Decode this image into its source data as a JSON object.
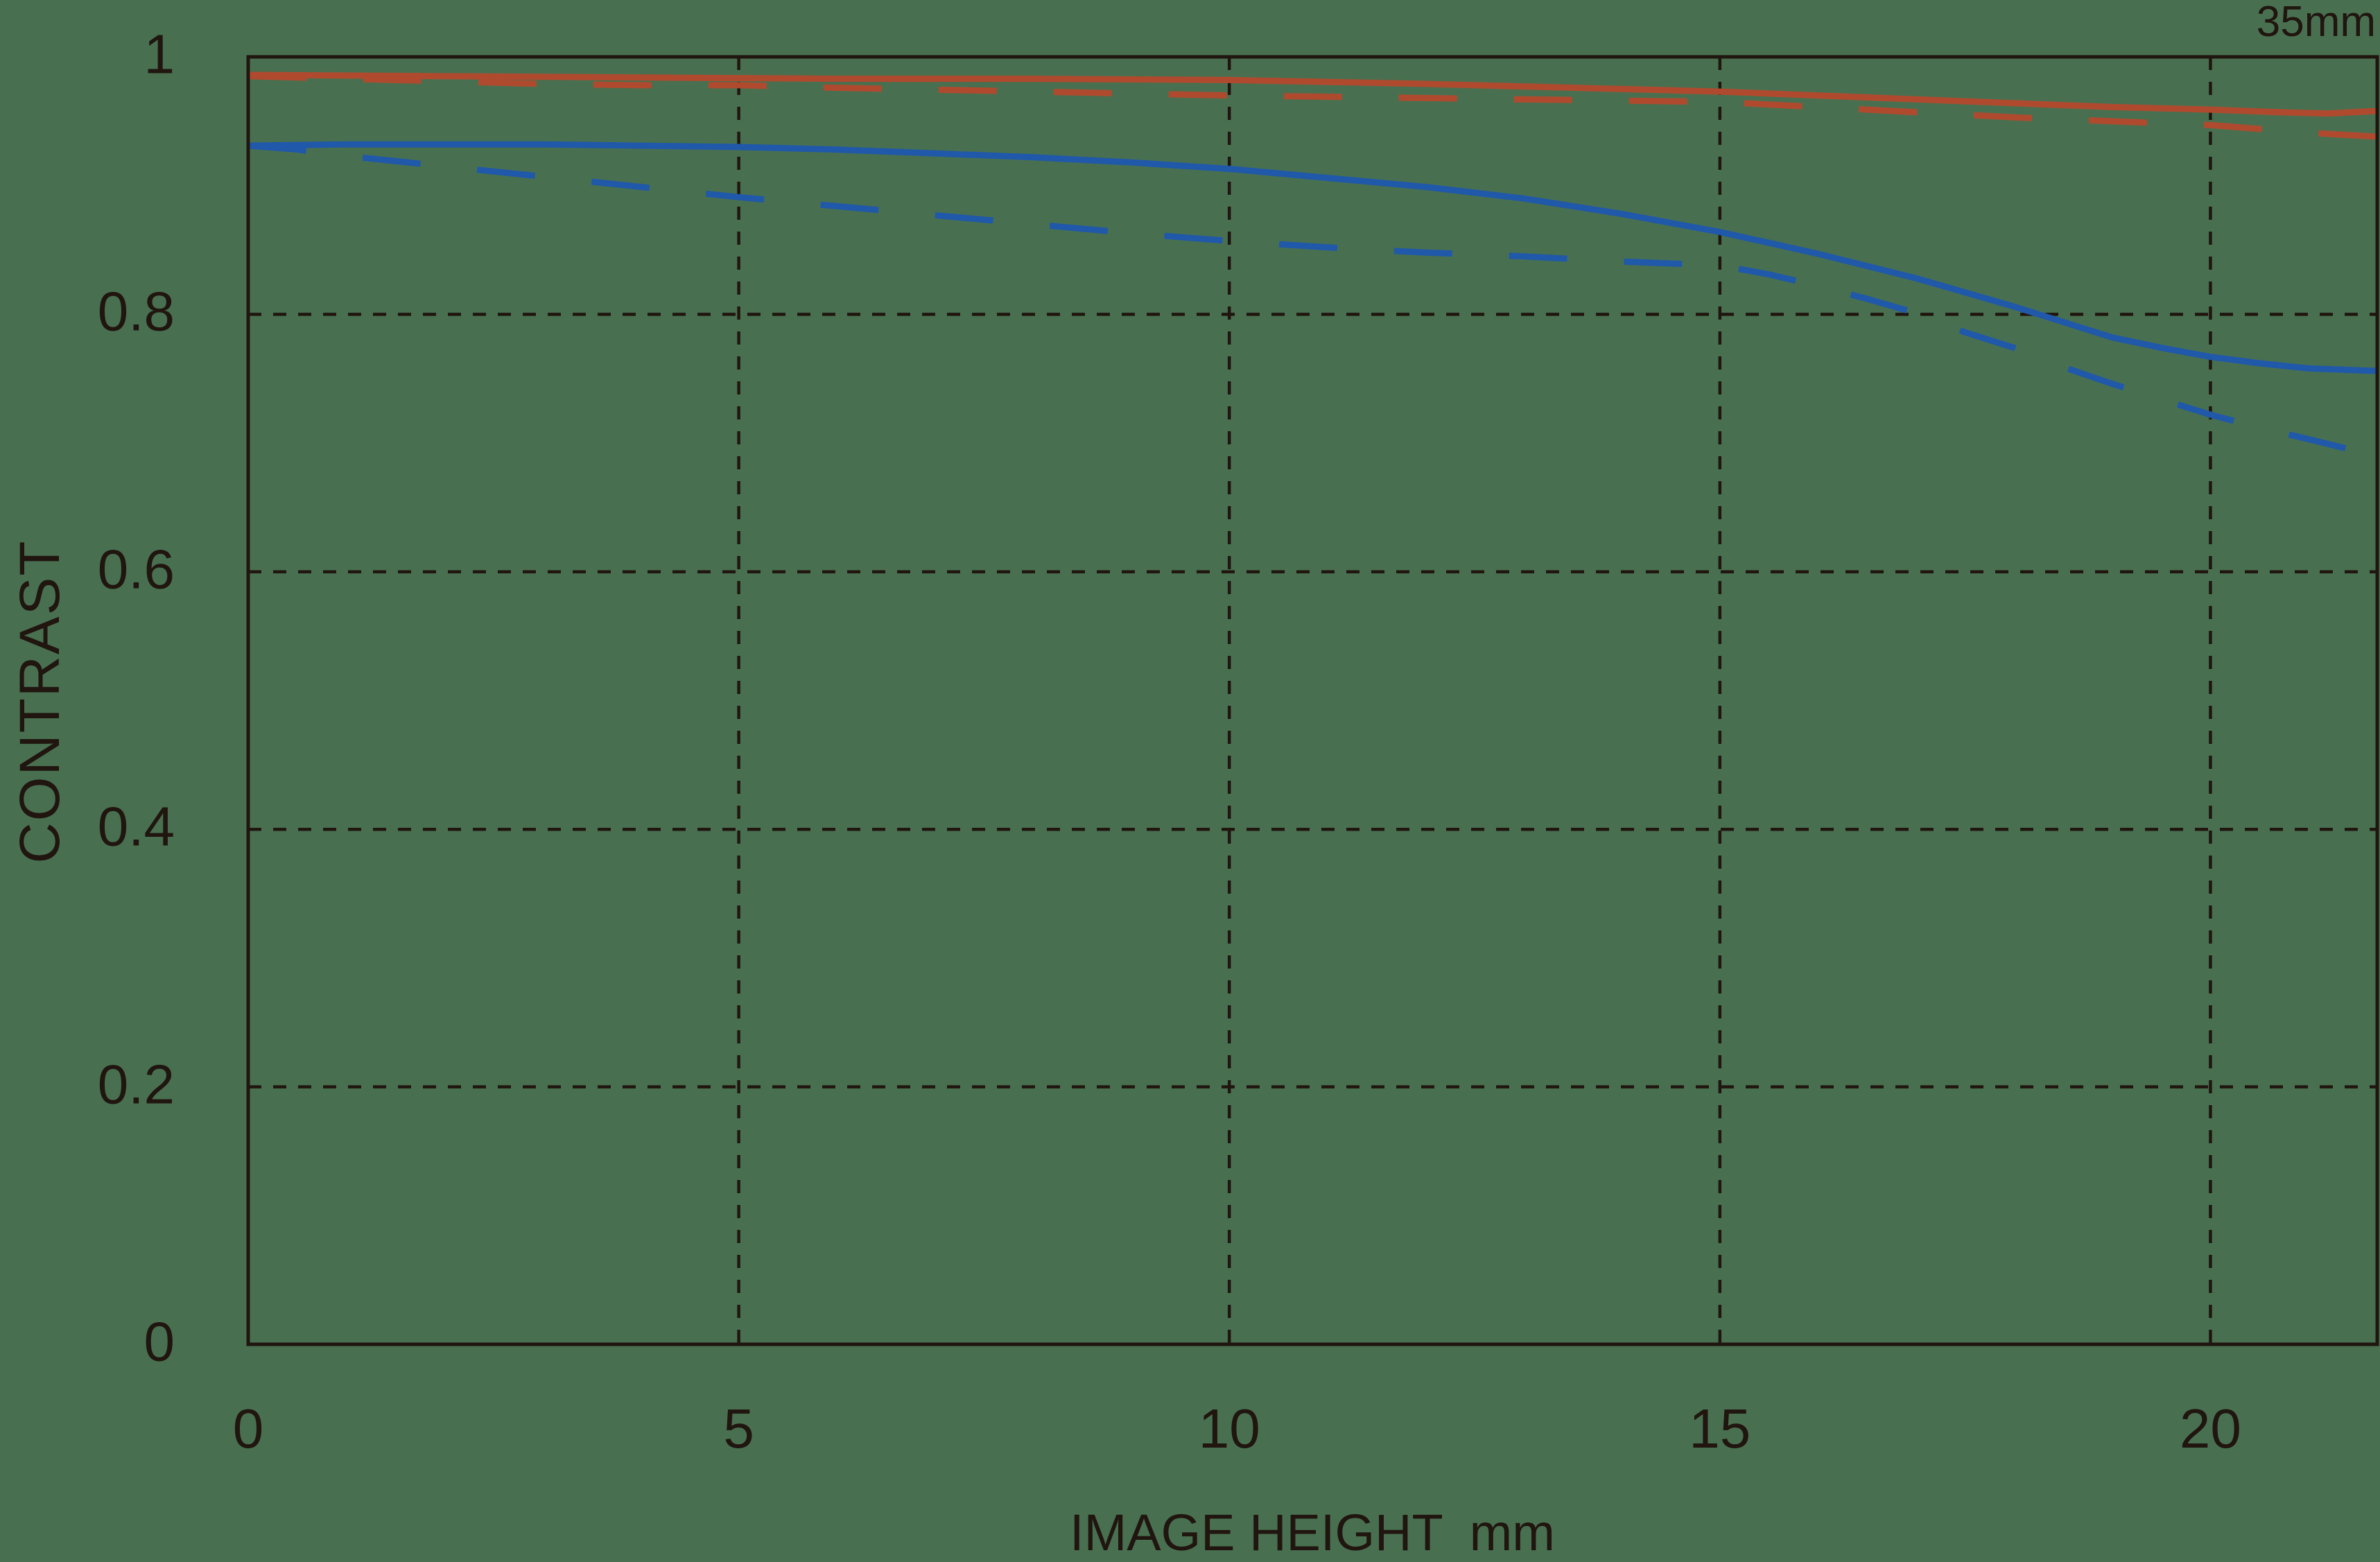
{
  "colors": {
    "background": "#487050",
    "ink": "#20150f",
    "red": "#b04a2e",
    "blue": "#2058aa"
  },
  "chart_data": {
    "type": "line",
    "title": "35mm",
    "ylabel": "CONTRAST",
    "xlabel": "IMAGE HEIGHT",
    "xlabel_unit": "mm",
    "xlim": [
      0,
      21.7
    ],
    "ylim": [
      0,
      1
    ],
    "x_ticks": [
      0,
      5,
      10,
      15,
      20
    ],
    "x_tick_labels": [
      "0",
      "5",
      "10",
      "15",
      "20"
    ],
    "y_ticks": [
      0,
      0.2,
      0.4,
      0.6,
      0.8,
      1
    ],
    "y_tick_labels": [
      "0",
      "0.2",
      "0.4",
      "0.6",
      "0.8",
      "1"
    ],
    "grid": "dashed",
    "legend": "none",
    "style": {
      "curve_width": 9,
      "curve_dash": "84 82",
      "grid_width": 4.5,
      "grid_dash": "19 17",
      "border_width": 5
    },
    "series": [
      {
        "name": "red-solid",
        "color": "#b04a2e",
        "style": "solid",
        "points": [
          [
            0,
            0.986
          ],
          [
            2,
            0.985
          ],
          [
            4,
            0.984
          ],
          [
            6,
            0.983
          ],
          [
            8,
            0.983
          ],
          [
            10,
            0.982
          ],
          [
            12,
            0.979
          ],
          [
            14,
            0.975
          ],
          [
            15,
            0.973
          ],
          [
            16,
            0.97
          ],
          [
            17,
            0.967
          ],
          [
            18,
            0.964
          ],
          [
            19,
            0.961
          ],
          [
            20,
            0.959
          ],
          [
            20.7,
            0.957
          ],
          [
            21.2,
            0.956
          ],
          [
            21.7,
            0.958
          ]
        ]
      },
      {
        "name": "red-dashed",
        "color": "#b04a2e",
        "style": "dashed",
        "points": [
          [
            0,
            0.985
          ],
          [
            1,
            0.983
          ],
          [
            2,
            0.981
          ],
          [
            3,
            0.979
          ],
          [
            4,
            0.978
          ],
          [
            5,
            0.978
          ],
          [
            6,
            0.976
          ],
          [
            8,
            0.973
          ],
          [
            10,
            0.97
          ],
          [
            12,
            0.968
          ],
          [
            14,
            0.966
          ],
          [
            15,
            0.965
          ],
          [
            16,
            0.961
          ],
          [
            17,
            0.957
          ],
          [
            18,
            0.953
          ],
          [
            19,
            0.95
          ],
          [
            20,
            0.947
          ],
          [
            21,
            0.941
          ],
          [
            21.7,
            0.938
          ]
        ]
      },
      {
        "name": "blue-solid",
        "color": "#2058aa",
        "style": "solid",
        "points": [
          [
            0,
            0.931
          ],
          [
            1,
            0.932
          ],
          [
            2,
            0.932
          ],
          [
            3,
            0.932
          ],
          [
            4,
            0.931
          ],
          [
            5,
            0.93
          ],
          [
            6,
            0.928
          ],
          [
            7,
            0.925
          ],
          [
            8,
            0.922
          ],
          [
            9,
            0.918
          ],
          [
            10,
            0.913
          ],
          [
            11,
            0.906
          ],
          [
            12,
            0.899
          ],
          [
            13,
            0.89
          ],
          [
            14,
            0.878
          ],
          [
            15,
            0.864
          ],
          [
            16,
            0.847
          ],
          [
            17,
            0.828
          ],
          [
            18,
            0.806
          ],
          [
            19,
            0.782
          ],
          [
            19.5,
            0.774
          ],
          [
            20,
            0.767
          ],
          [
            20.5,
            0.762
          ],
          [
            21,
            0.758
          ],
          [
            21.7,
            0.756
          ]
        ]
      },
      {
        "name": "blue-dashed",
        "color": "#2058aa",
        "style": "dashed",
        "points": [
          [
            0,
            0.931
          ],
          [
            0.5,
            0.928
          ],
          [
            1,
            0.923
          ],
          [
            1.5,
            0.919
          ],
          [
            2,
            0.915
          ],
          [
            2.5,
            0.911
          ],
          [
            3,
            0.907
          ],
          [
            3.5,
            0.903
          ],
          [
            4,
            0.899
          ],
          [
            4.5,
            0.895
          ],
          [
            5,
            0.891
          ],
          [
            6,
            0.884
          ],
          [
            7,
            0.877
          ],
          [
            8,
            0.87
          ],
          [
            9,
            0.863
          ],
          [
            10,
            0.857
          ],
          [
            11,
            0.852
          ],
          [
            12,
            0.848
          ],
          [
            13,
            0.845
          ],
          [
            14,
            0.841
          ],
          [
            15,
            0.838
          ],
          [
            15.5,
            0.831
          ],
          [
            16,
            0.822
          ],
          [
            16.5,
            0.812
          ],
          [
            17,
            0.801
          ],
          [
            17.5,
            0.786
          ],
          [
            18,
            0.774
          ],
          [
            18.5,
            0.759
          ],
          [
            19,
            0.746
          ],
          [
            19.5,
            0.734
          ],
          [
            20,
            0.722
          ],
          [
            20.5,
            0.712
          ],
          [
            21,
            0.703
          ],
          [
            21.7,
            0.69
          ]
        ]
      }
    ]
  }
}
